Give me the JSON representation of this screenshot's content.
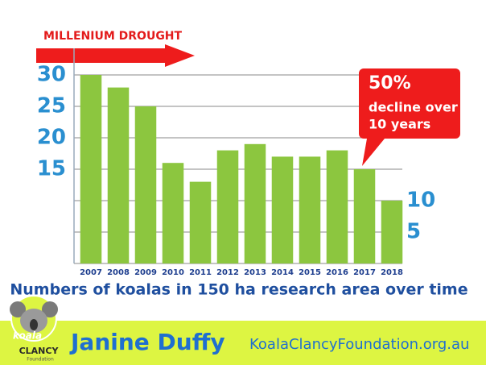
{
  "chart_data": {
    "type": "bar",
    "title": "MILLENIUM DROUGHT",
    "x_label": "Numbers of koalas in 150 ha research area over time",
    "categories": [
      "2007",
      "2008",
      "2009",
      "2010",
      "2011",
      "2012",
      "2013",
      "2014",
      "2015",
      "2016",
      "2017",
      "2018"
    ],
    "values": [
      30,
      28,
      25,
      16,
      13,
      18,
      19,
      17,
      17,
      18,
      15,
      10
    ],
    "color": "#8cc63f",
    "ylim": [
      0,
      30
    ],
    "yticks_left": [
      15,
      20,
      25,
      30
    ],
    "yticks_right": [
      5,
      10
    ],
    "grid": true,
    "annotation": [
      "50%",
      "decline over",
      "10 years"
    ]
  },
  "footer": {
    "author": "Janine Duffy",
    "website": "KoalaClancyFoundation.org.au",
    "logo": [
      "koala",
      "CLANCY",
      "Foundation"
    ]
  }
}
